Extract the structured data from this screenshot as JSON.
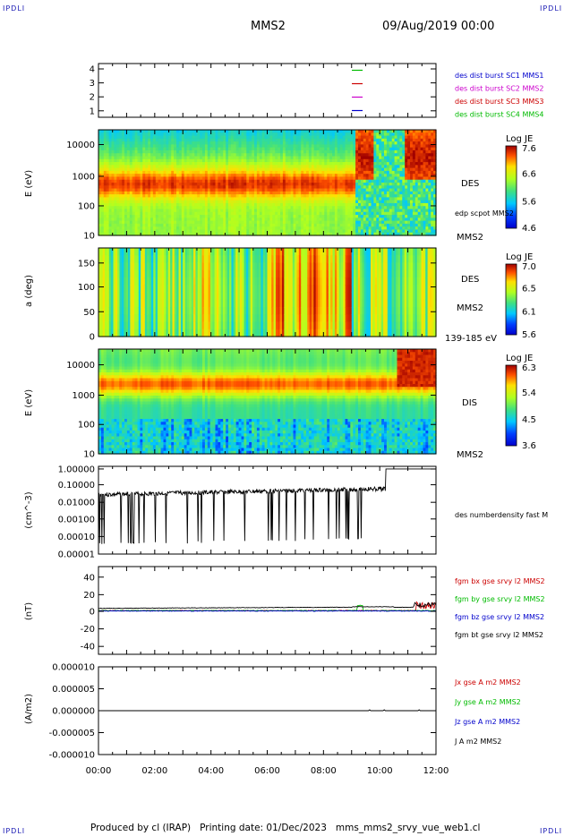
{
  "corner_mark": "IPDLI",
  "header": {
    "spacecraft": "MMS2",
    "date": "09/Aug/2019 00:00"
  },
  "footer": "Produced by cl (IRAP)   Printing date: 01/Dec/2023   mms_mms2_srvy_vue_web1.cl",
  "time_axis": {
    "ticks": [
      "00:00",
      "02:00",
      "04:00",
      "06:00",
      "08:00",
      "10:00",
      "12:00"
    ],
    "range_hours": [
      0,
      12
    ]
  },
  "colors": {
    "blue": "#0000cc",
    "magenta": "#cc00cc",
    "red": "#cc0000",
    "green": "#00bb00",
    "black": "#000000"
  },
  "chart_data": [
    {
      "type": "line",
      "panel": "spacecraft-position",
      "yticks": [
        "4",
        "3",
        "2",
        "1"
      ],
      "ylim": [
        0.5,
        4.5
      ],
      "legend": [
        {
          "label": "des dist burst SC1 MMS1",
          "color": "#0000cc",
          "y": 1
        },
        {
          "label": "des dist burst SC2 MMS2",
          "color": "#cc00cc",
          "y": 2
        },
        {
          "label": "des dist burst SC3 MMS3",
          "color": "#cc0000",
          "y": 3
        },
        {
          "label": "des dist burst SC4 MMS4",
          "color": "#00bb00",
          "y": 4
        }
      ],
      "marker_hour": 9.2
    },
    {
      "type": "heatmap",
      "panel": "des-energy",
      "ylabel": "E (eV)",
      "yticks": [
        "10000",
        "1000",
        "100",
        "10"
      ],
      "scale": "log",
      "ylim": [
        10,
        30000
      ],
      "right_labels": [
        "DES",
        "edp scpot MMS2",
        "MMS2"
      ],
      "colorbar": {
        "title": "Log JE",
        "ticks": [
          "7.6",
          "6.6",
          "5.6",
          "4.6"
        ]
      }
    },
    {
      "type": "heatmap",
      "panel": "des-pitch-angle",
      "ylabel": "a (deg)",
      "yticks": [
        "150",
        "100",
        "50",
        "0"
      ],
      "ylim": [
        0,
        180
      ],
      "right_labels": [
        "DES",
        "MMS2",
        "139-185 eV"
      ],
      "colorbar": {
        "title": "Log JE",
        "ticks": [
          "7.0",
          "6.5",
          "6.1",
          "5.6"
        ]
      }
    },
    {
      "type": "heatmap",
      "panel": "dis-energy",
      "ylabel": "E (eV)",
      "yticks": [
        "10000",
        "1000",
        "100",
        "10"
      ],
      "scale": "log",
      "ylim": [
        10,
        30000
      ],
      "right_labels": [
        "DIS",
        "MMS2"
      ],
      "colorbar": {
        "title": "Log JE",
        "ticks": [
          "6.3",
          "5.4",
          "4.5",
          "3.6"
        ]
      }
    },
    {
      "type": "line",
      "panel": "density",
      "ylabel": "(cm^-3)",
      "yticks": [
        "1.00000",
        "0.10000",
        "0.01000",
        "0.00100",
        "0.00010",
        "0.00001"
      ],
      "scale": "log",
      "ylim": [
        1e-05,
        1
      ],
      "series": [
        {
          "name": "des numberdensity fast M",
          "color": "#000000"
        }
      ]
    },
    {
      "type": "line",
      "panel": "magnetic-field",
      "ylabel": "(nT)",
      "yticks": [
        "40",
        "20",
        "0",
        "-20",
        "-40"
      ],
      "ylim": [
        -50,
        50
      ],
      "series": [
        {
          "name": "fgm bx gse srvy l2 MMS2",
          "color": "#cc0000"
        },
        {
          "name": "fgm by gse srvy l2 MMS2",
          "color": "#00bb00"
        },
        {
          "name": "fgm bz gse srvy l2 MMS2",
          "color": "#0000cc"
        },
        {
          "name": "fgm bt gse srvy l2 MMS2",
          "color": "#000000"
        }
      ]
    },
    {
      "type": "line",
      "panel": "current-density",
      "ylabel": "(A/m2)",
      "yticks": [
        "0.000010",
        "0.000005",
        "0.000000",
        "-0.000005",
        "-0.000010"
      ],
      "ylim": [
        -1e-05,
        1e-05
      ],
      "series": [
        {
          "name": "Jx gse A m2 MMS2",
          "color": "#cc0000"
        },
        {
          "name": "Jy gse A m2 MMS2",
          "color": "#00bb00"
        },
        {
          "name": "Jz gse A m2 MMS2",
          "color": "#0000cc"
        },
        {
          "name": "J A m2 MMS2",
          "color": "#000000"
        }
      ]
    }
  ]
}
